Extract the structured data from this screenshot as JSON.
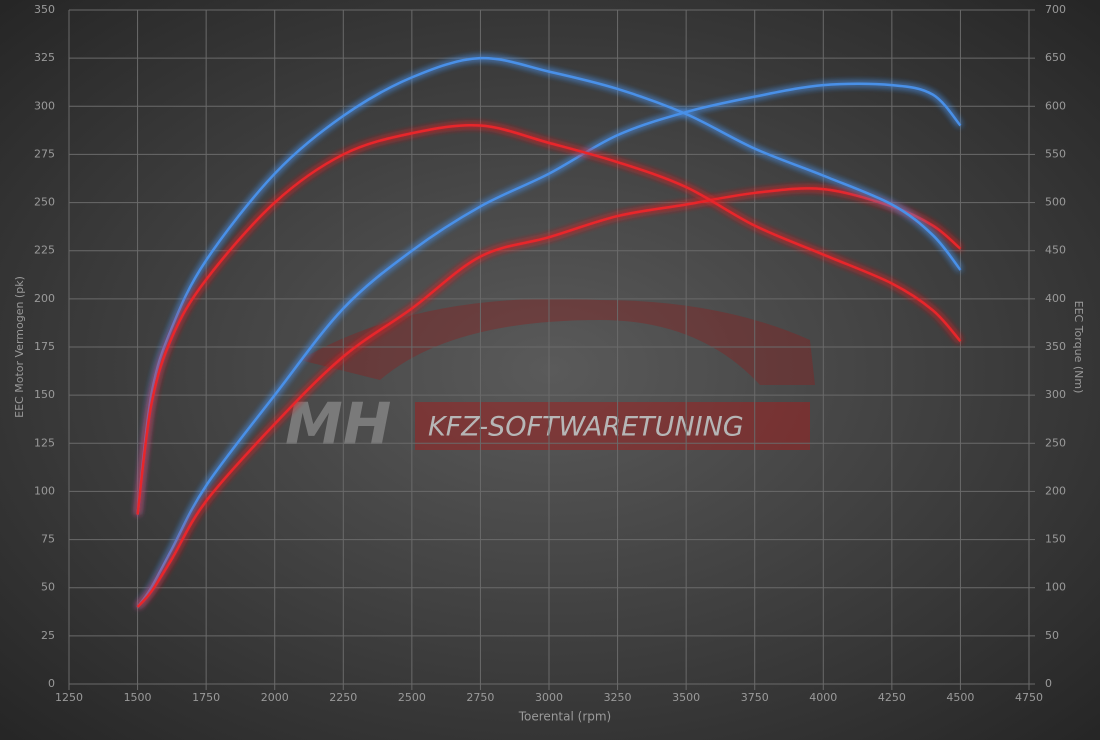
{
  "chart_data": {
    "type": "line",
    "xlabel": "Toerental (rpm)",
    "ylabel": "EEC Motor Vermogen (pk)",
    "y2label": "EEC Torque (Nm)",
    "watermark": [
      "MH",
      "KFZ-SOFTWARETUNING"
    ],
    "x": [
      1500,
      1550,
      1625,
      1750,
      2000,
      2250,
      2500,
      2750,
      3000,
      3250,
      3500,
      3750,
      4000,
      4250,
      4400,
      4500
    ],
    "series": [
      {
        "color": "#4a90e8",
        "axis": "y",
        "values": [
          40,
          50,
          70,
          103,
          150,
          195,
          225,
          248,
          265,
          285,
          297,
          305,
          311,
          311,
          306,
          290
        ]
      },
      {
        "color": "#e8282a",
        "axis": "y",
        "values": [
          40,
          48,
          65,
          95,
          135,
          170,
          195,
          222,
          232,
          243,
          249,
          255,
          257,
          248,
          238,
          226
        ]
      },
      {
        "color": "#4a90e8",
        "axis": "y2",
        "values": [
          176,
          300,
          370,
          440,
          530,
          590,
          630,
          650,
          636,
          618,
          592,
          556,
          528,
          498,
          466,
          430
        ]
      },
      {
        "color": "#e8282a",
        "axis": "y2",
        "values": [
          176,
          290,
          360,
          420,
          500,
          550,
          572,
          580,
          562,
          542,
          516,
          476,
          446,
          416,
          388,
          356
        ]
      }
    ],
    "xlim": [
      1250,
      4750
    ],
    "xticks": [
      1250,
      1500,
      1750,
      2000,
      2250,
      2500,
      2750,
      3000,
      3250,
      3500,
      3750,
      4000,
      4250,
      4500,
      4750
    ],
    "ylim": [
      0,
      350
    ],
    "yticks": [
      0,
      25,
      50,
      75,
      100,
      125,
      150,
      175,
      200,
      225,
      250,
      275,
      300,
      325,
      350
    ],
    "y2lim": [
      0,
      700
    ],
    "y2ticks": [
      0,
      50,
      100,
      150,
      200,
      250,
      300,
      350,
      400,
      450,
      500,
      550,
      600,
      650,
      700
    ],
    "grid": true
  }
}
